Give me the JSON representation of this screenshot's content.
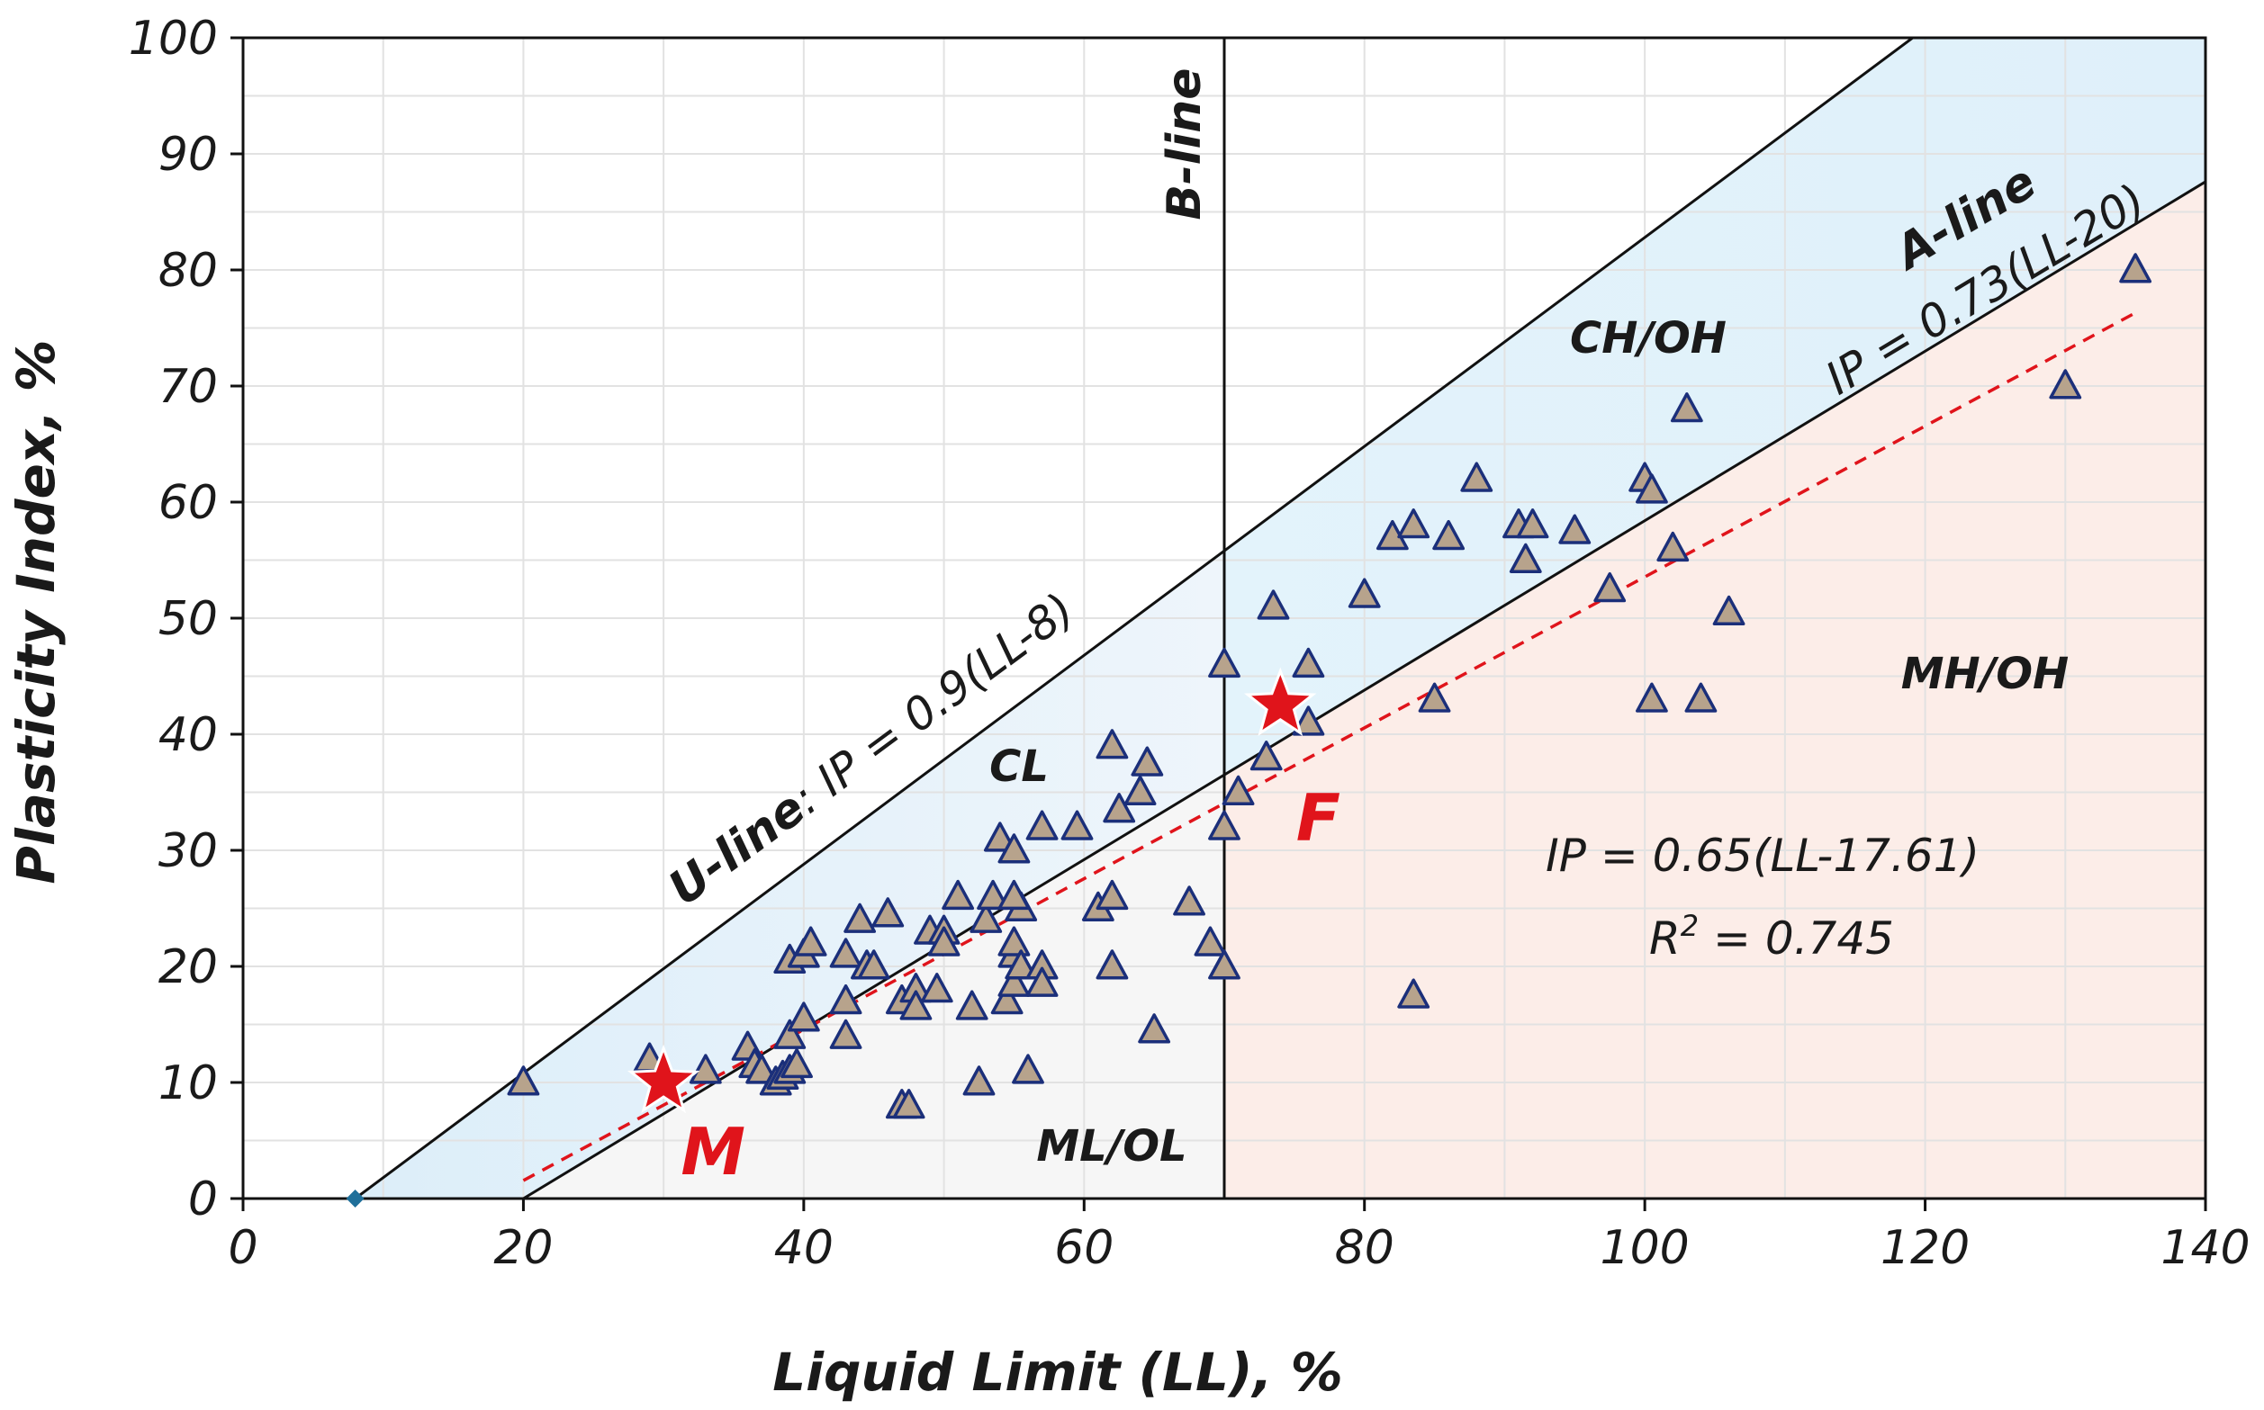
{
  "chart_data": {
    "type": "scatter",
    "xlabel": "Liquid Limit (LL), %",
    "ylabel": "Plasticity Index, %",
    "xlim": [
      0,
      140
    ],
    "ylim": [
      0,
      100
    ],
    "xticks": [
      "0",
      "20",
      "40",
      "60",
      "80",
      "100",
      "120",
      "140"
    ],
    "yticks": [
      "0",
      "10",
      "20",
      "30",
      "40",
      "50",
      "60",
      "70",
      "80",
      "90",
      "100"
    ],
    "grid": true,
    "zones": {
      "cl": "CL",
      "ch_oh": "CH/OH",
      "ml_ol": "ML/OL",
      "mh_oh": "MH/OH"
    },
    "lines": {
      "b_line": {
        "label": "B-line",
        "x": 70
      },
      "u_line": {
        "label_bold": "U-line",
        "label_eq": ": IP = 0.9(LL-8)",
        "slope": 0.9,
        "x0": 8
      },
      "a_line": {
        "label_bold": "A-line",
        "label_eq": "IP = 0.73(LL-20)",
        "slope": 0.73,
        "x0": 20
      },
      "fit": {
        "eq": "IP = 0.65(LL-17.61)",
        "r2_prefix": "R",
        "r2_sup": "2",
        "r2_rest": " = 0.745",
        "slope": 0.65,
        "x0": 17.61,
        "x_range": [
          20,
          135
        ],
        "color": "#e0141b"
      }
    },
    "origin_marker": {
      "x": 8,
      "y": 0,
      "color": "#1f6f9a"
    },
    "stars": [
      {
        "label": "M",
        "x": 30,
        "y": 10
      },
      {
        "label": "F",
        "x": 74,
        "y": 42.5
      }
    ],
    "points": [
      [
        20,
        10
      ],
      [
        29,
        12
      ],
      [
        33,
        11
      ],
      [
        36,
        13
      ],
      [
        36.5,
        11.5
      ],
      [
        37,
        11
      ],
      [
        38,
        10
      ],
      [
        38.5,
        10.5
      ],
      [
        39,
        11
      ],
      [
        39.5,
        11.5
      ],
      [
        39,
        14
      ],
      [
        40,
        15.5
      ],
      [
        39,
        20.5
      ],
      [
        40,
        21
      ],
      [
        40.5,
        22
      ],
      [
        43,
        14
      ],
      [
        43,
        17
      ],
      [
        43,
        21
      ],
      [
        44,
        24
      ],
      [
        44.5,
        20
      ],
      [
        45,
        20
      ],
      [
        46,
        24.5
      ],
      [
        47,
        8
      ],
      [
        47.5,
        8
      ],
      [
        47,
        17
      ],
      [
        48,
        18
      ],
      [
        48,
        16.5
      ],
      [
        49,
        23
      ],
      [
        49.5,
        18
      ],
      [
        50,
        23
      ],
      [
        50,
        22
      ],
      [
        51,
        26
      ],
      [
        52,
        16.5
      ],
      [
        52.5,
        10
      ],
      [
        53,
        24
      ],
      [
        53.5,
        26
      ],
      [
        54,
        31
      ],
      [
        54.5,
        17
      ],
      [
        55,
        18.5
      ],
      [
        55,
        30
      ],
      [
        55,
        21
      ],
      [
        55,
        22
      ],
      [
        55.5,
        20
      ],
      [
        55.5,
        25
      ],
      [
        55,
        26
      ],
      [
        56,
        11
      ],
      [
        57,
        20
      ],
      [
        57,
        18.5
      ],
      [
        57,
        32
      ],
      [
        59.5,
        32
      ],
      [
        61,
        25
      ],
      [
        62,
        39
      ],
      [
        62,
        26
      ],
      [
        62,
        20
      ],
      [
        62.5,
        33.5
      ],
      [
        64,
        35
      ],
      [
        64.5,
        37.5
      ],
      [
        65,
        14.5
      ],
      [
        67.5,
        25.5
      ],
      [
        69,
        22
      ],
      [
        70,
        20
      ],
      [
        70,
        32
      ],
      [
        70,
        46
      ],
      [
        71,
        35
      ],
      [
        73,
        38
      ],
      [
        73.5,
        51
      ],
      [
        76,
        46
      ],
      [
        76,
        41
      ],
      [
        80,
        52
      ],
      [
        82,
        57
      ],
      [
        83.5,
        58
      ],
      [
        83.5,
        17.5
      ],
      [
        85,
        43
      ],
      [
        86,
        57
      ],
      [
        88,
        62
      ],
      [
        91,
        58
      ],
      [
        91.5,
        55
      ],
      [
        92,
        58
      ],
      [
        95,
        57.5
      ],
      [
        97.5,
        52.5
      ],
      [
        100,
        62
      ],
      [
        100.5,
        61
      ],
      [
        100.5,
        43
      ],
      [
        102,
        56
      ],
      [
        103,
        68
      ],
      [
        104,
        43
      ],
      [
        106,
        50.5
      ],
      [
        130,
        70
      ],
      [
        135,
        80
      ]
    ]
  }
}
